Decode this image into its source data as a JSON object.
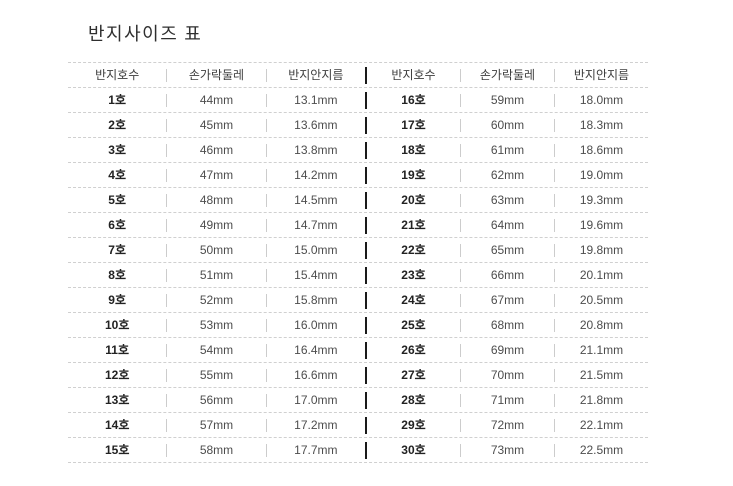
{
  "page": {
    "title": "반지사이즈 표"
  },
  "table": {
    "headers": {
      "size": "반지호수",
      "circumference": "손가락둘레",
      "diameter": "반지안지름"
    },
    "left": {
      "rows": [
        {
          "size": "1호",
          "circumference": "44mm",
          "diameter": "13.1mm"
        },
        {
          "size": "2호",
          "circumference": "45mm",
          "diameter": "13.6mm"
        },
        {
          "size": "3호",
          "circumference": "46mm",
          "diameter": "13.8mm"
        },
        {
          "size": "4호",
          "circumference": "47mm",
          "diameter": "14.2mm"
        },
        {
          "size": "5호",
          "circumference": "48mm",
          "diameter": "14.5mm"
        },
        {
          "size": "6호",
          "circumference": "49mm",
          "diameter": "14.7mm"
        },
        {
          "size": "7호",
          "circumference": "50mm",
          "diameter": "15.0mm"
        },
        {
          "size": "8호",
          "circumference": "51mm",
          "diameter": "15.4mm"
        },
        {
          "size": "9호",
          "circumference": "52mm",
          "diameter": "15.8mm"
        },
        {
          "size": "10호",
          "circumference": "53mm",
          "diameter": "16.0mm"
        },
        {
          "size": "11호",
          "circumference": "54mm",
          "diameter": "16.4mm"
        },
        {
          "size": "12호",
          "circumference": "55mm",
          "diameter": "16.6mm"
        },
        {
          "size": "13호",
          "circumference": "56mm",
          "diameter": "17.0mm"
        },
        {
          "size": "14호",
          "circumference": "57mm",
          "diameter": "17.2mm"
        },
        {
          "size": "15호",
          "circumference": "58mm",
          "diameter": "17.7mm"
        }
      ]
    },
    "right": {
      "rows": [
        {
          "size": "16호",
          "circumference": "59mm",
          "diameter": "18.0mm"
        },
        {
          "size": "17호",
          "circumference": "60mm",
          "diameter": "18.3mm"
        },
        {
          "size": "18호",
          "circumference": "61mm",
          "diameter": "18.6mm"
        },
        {
          "size": "19호",
          "circumference": "62mm",
          "diameter": "19.0mm"
        },
        {
          "size": "20호",
          "circumference": "63mm",
          "diameter": "19.3mm"
        },
        {
          "size": "21호",
          "circumference": "64mm",
          "diameter": "19.6mm"
        },
        {
          "size": "22호",
          "circumference": "65mm",
          "diameter": "19.8mm"
        },
        {
          "size": "23호",
          "circumference": "66mm",
          "diameter": "20.1mm"
        },
        {
          "size": "24호",
          "circumference": "67mm",
          "diameter": "20.5mm"
        },
        {
          "size": "25호",
          "circumference": "68mm",
          "diameter": "20.8mm"
        },
        {
          "size": "26호",
          "circumference": "69mm",
          "diameter": "21.1mm"
        },
        {
          "size": "27호",
          "circumference": "70mm",
          "diameter": "21.5mm"
        },
        {
          "size": "28호",
          "circumference": "71mm",
          "diameter": "21.8mm"
        },
        {
          "size": "29호",
          "circumference": "72mm",
          "diameter": "22.1mm"
        },
        {
          "size": "30호",
          "circumference": "73mm",
          "diameter": "22.5mm"
        }
      ]
    }
  },
  "chart_data": {
    "type": "table",
    "title": "반지사이즈 표",
    "columns": [
      "반지호수",
      "손가락둘레",
      "반지안지름",
      "반지호수",
      "손가락둘레",
      "반지안지름"
    ],
    "rows": [
      [
        "1호",
        "44mm",
        "13.1mm",
        "16호",
        "59mm",
        "18.0mm"
      ],
      [
        "2호",
        "45mm",
        "13.6mm",
        "17호",
        "60mm",
        "18.3mm"
      ],
      [
        "3호",
        "46mm",
        "13.8mm",
        "18호",
        "61mm",
        "18.6mm"
      ],
      [
        "4호",
        "47mm",
        "14.2mm",
        "19호",
        "62mm",
        "19.0mm"
      ],
      [
        "5호",
        "48mm",
        "14.5mm",
        "20호",
        "63mm",
        "19.3mm"
      ],
      [
        "6호",
        "49mm",
        "14.7mm",
        "21호",
        "64mm",
        "19.6mm"
      ],
      [
        "7호",
        "50mm",
        "15.0mm",
        "22호",
        "65mm",
        "19.8mm"
      ],
      [
        "8호",
        "51mm",
        "15.4mm",
        "23호",
        "66mm",
        "20.1mm"
      ],
      [
        "9호",
        "52mm",
        "15.8mm",
        "24호",
        "67mm",
        "20.5mm"
      ],
      [
        "10호",
        "53mm",
        "16.0mm",
        "25호",
        "68mm",
        "20.8mm"
      ],
      [
        "11호",
        "54mm",
        "16.4mm",
        "26호",
        "69mm",
        "21.1mm"
      ],
      [
        "12호",
        "55mm",
        "16.6mm",
        "27호",
        "70mm",
        "21.5mm"
      ],
      [
        "13호",
        "56mm",
        "17.0mm",
        "28호",
        "71mm",
        "21.8mm"
      ],
      [
        "14호",
        "57mm",
        "17.2mm",
        "29호",
        "72mm",
        "22.1mm"
      ],
      [
        "15호",
        "58mm",
        "17.7mm",
        "30호",
        "73mm",
        "22.5mm"
      ]
    ]
  },
  "colors": {
    "background": "#ffffff",
    "title_text": "#2f2f2f",
    "header_text": "#3d3d3d",
    "size_text": "#222222",
    "value_text": "#4d4d4d",
    "dashed_line": "#d0d0d0",
    "column_separator": "#cccccc",
    "table_divider": "#1a1a1a"
  }
}
